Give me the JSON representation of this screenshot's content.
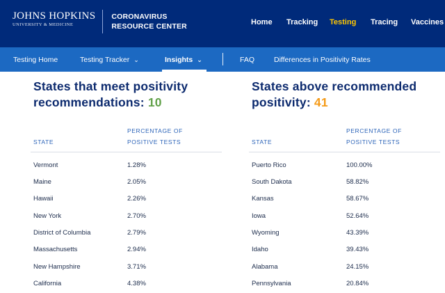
{
  "header": {
    "brand_main": "JOHNS HOPKINS",
    "brand_sub": "UNIVERSITY & MEDICINE",
    "site_title_line1": "CORONAVIRUS",
    "site_title_line2": "RESOURCE CENTER",
    "nav": [
      "Home",
      "Tracking",
      "Testing",
      "Tracing",
      "Vaccines"
    ],
    "active_nav": "Testing"
  },
  "subnav": {
    "items": [
      "Testing Home",
      "Testing Tracker",
      "Insights",
      "FAQ",
      "Differences in Positivity Rates"
    ],
    "active": "Insights"
  },
  "left": {
    "heading_line1": "States that meet positivity",
    "heading_line2": "recommendations: ",
    "count": "10",
    "col_state": "STATE",
    "col_pct_line1": "PERCENTAGE OF",
    "col_pct_line2": "POSITIVE TESTS",
    "rows": [
      {
        "state": "Vermont",
        "pct": "1.28%"
      },
      {
        "state": "Maine",
        "pct": "2.05%"
      },
      {
        "state": "Hawaii",
        "pct": "2.26%"
      },
      {
        "state": "New York",
        "pct": "2.70%"
      },
      {
        "state": "District of Columbia",
        "pct": "2.79%"
      },
      {
        "state": "Massachusetts",
        "pct": "2.94%"
      },
      {
        "state": "New Hampshire",
        "pct": "3.71%"
      },
      {
        "state": "California",
        "pct": "4.38%"
      }
    ]
  },
  "right": {
    "heading_line1": "States above recommended",
    "heading_line2": "positivity: ",
    "count": "41",
    "col_state": "STATE",
    "col_pct_line1": "PERCENTAGE OF",
    "col_pct_line2": "POSITIVE TESTS",
    "rows": [
      {
        "state": "Puerto Rico",
        "pct": "100.00%"
      },
      {
        "state": "South Dakota",
        "pct": "58.82%"
      },
      {
        "state": "Kansas",
        "pct": "58.67%"
      },
      {
        "state": "Iowa",
        "pct": "52.64%"
      },
      {
        "state": "Wyoming",
        "pct": "43.39%"
      },
      {
        "state": "Idaho",
        "pct": "39.43%"
      },
      {
        "state": "Alabama",
        "pct": "24.15%"
      },
      {
        "state": "Pennsylvania",
        "pct": "20.84%"
      }
    ]
  },
  "colors": {
    "header_bg": "#002a7a",
    "subnav_bg": "#1c69c2",
    "active_nav": "#ffc700",
    "heading": "#0c2a6e",
    "count_good": "#62a14a",
    "count_bad": "#f59a16"
  }
}
